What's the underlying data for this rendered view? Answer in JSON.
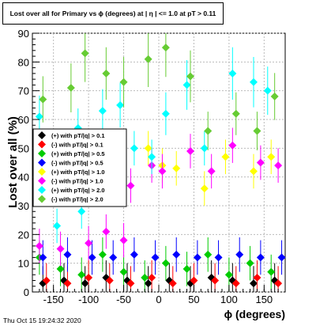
{
  "title": "Lost over all for Primary vs ϕ (degrees) at | η | <= 1.0 at pT > 0.11",
  "footer": "Thu Oct 15 19:24:32 2020",
  "chart_data": {
    "type": "scatter",
    "xlabel": "ϕ (degrees)",
    "ylabel": "Lost over all (%)",
    "xlim": [
      -180,
      180
    ],
    "ylim": [
      0,
      90
    ],
    "xticks": [
      -150,
      -100,
      -50,
      0,
      50,
      100,
      150
    ],
    "yticks": [
      0,
      10,
      20,
      30,
      40,
      50,
      60,
      70,
      80,
      90
    ],
    "grid": true,
    "legend_position": "left-middle",
    "series": [
      {
        "name": "(+) with pT/|q| > 0.1",
        "color": "#000000",
        "x": [
          -165,
          -135,
          -105,
          -75,
          -45,
          -15,
          15,
          45,
          75,
          105,
          135,
          165
        ],
        "y": [
          3,
          4,
          3,
          5,
          4,
          3,
          4,
          3,
          5,
          4,
          3,
          4
        ]
      },
      {
        "name": "(-) with pT/|q| > 0.1",
        "color": "#ff0000",
        "x": [
          -160,
          -130,
          -100,
          -70,
          -40,
          -10,
          20,
          50,
          80,
          110,
          140,
          170
        ],
        "y": [
          4,
          3,
          5,
          4,
          3,
          5,
          3,
          4,
          4,
          3,
          5,
          3
        ]
      },
      {
        "name": "(+) with pT/|q| > 0.5",
        "color": "#00cc00",
        "x": [
          -170,
          -140,
          -110,
          -80,
          -50,
          -20,
          10,
          40,
          70,
          100,
          130,
          160
        ],
        "y": [
          12,
          8,
          6,
          13,
          7,
          5,
          10,
          8,
          13,
          6,
          10,
          7
        ]
      },
      {
        "name": "(-) with pT/|q| > 0.5",
        "color": "#0000ff",
        "x": [
          -165,
          -130,
          -95,
          -65,
          -35,
          -5,
          25,
          55,
          85,
          115,
          145,
          175
        ],
        "y": [
          12,
          13,
          12,
          12,
          13,
          12,
          13,
          12,
          12,
          13,
          12,
          12
        ]
      },
      {
        "name": "(+) with pT/|q| > 1.0",
        "color": "#ffff00",
        "x": [
          -15,
          5,
          25,
          65,
          95,
          135,
          160
        ],
        "y": [
          50,
          44,
          43,
          36,
          47,
          42,
          47
        ]
      },
      {
        "name": "(-) with pT/|q| > 1.0",
        "color": "#ff00ff",
        "x": [
          -170,
          -140,
          -100,
          -75,
          -50,
          -40,
          -10,
          5,
          45,
          75,
          105,
          145,
          170
        ],
        "y": [
          16,
          15,
          17,
          21,
          18,
          37,
          44,
          42,
          49,
          42,
          51,
          45,
          44
        ]
      },
      {
        "name": "(+) with pT/|q| > 2.0",
        "color": "#00ffff",
        "x": [
          -170,
          -145,
          -115,
          -110,
          -80,
          -55,
          -35,
          -10,
          10,
          40,
          65,
          105,
          135,
          155
        ],
        "y": [
          61,
          23,
          57,
          28,
          63,
          65,
          50,
          47,
          62,
          72,
          50,
          76,
          73,
          70
        ]
      },
      {
        "name": "(-) with pT/|q| > 2.0",
        "color": "#66cc33",
        "x": [
          -165,
          -125,
          -105,
          -75,
          -50,
          -15,
          10,
          45,
          70,
          110,
          140,
          165
        ],
        "y": [
          67,
          71,
          83,
          76,
          73,
          81,
          85,
          75,
          56,
          62,
          56,
          68
        ]
      }
    ]
  }
}
